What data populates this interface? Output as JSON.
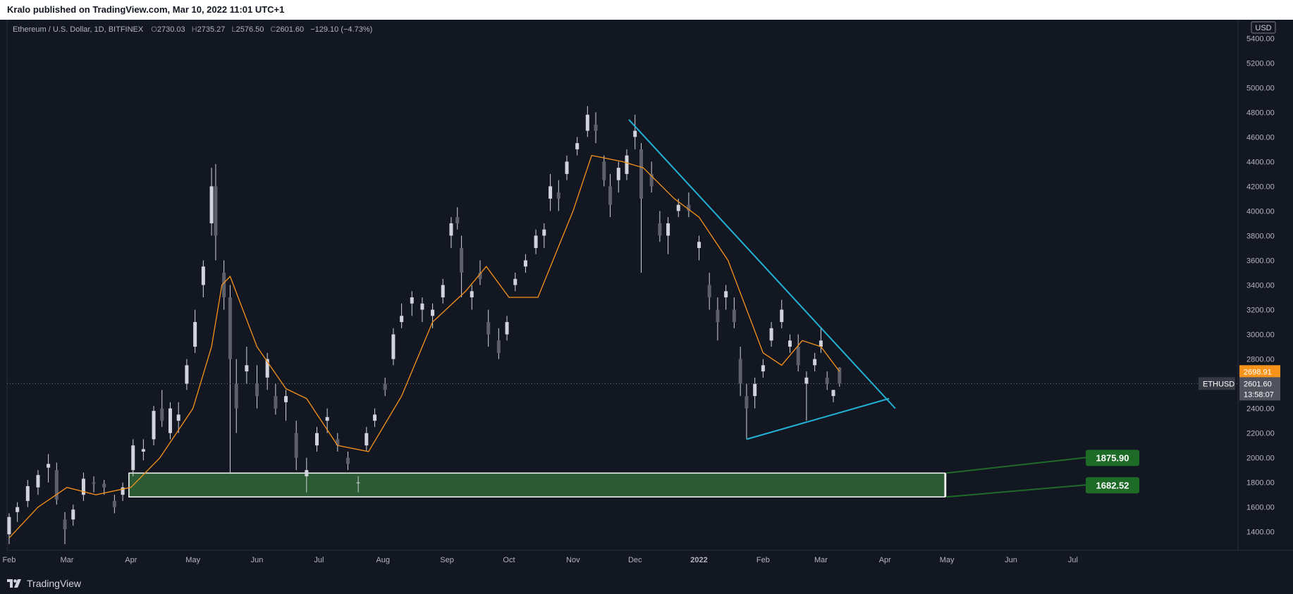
{
  "header": {
    "published": "Kralo published on TradingView.com, Mar 10, 2022 11:01 UTC+1"
  },
  "footer": {
    "brand": "TradingView"
  },
  "legend": {
    "symbol": "Ethereum / U.S. Dollar, 1D, BITFINEX",
    "ohlc": [
      {
        "k": "O",
        "v": "2730.03"
      },
      {
        "k": "H",
        "v": "2735.27"
      },
      {
        "k": "L",
        "v": "2576.50"
      },
      {
        "k": "C",
        "v": "2601.60"
      }
    ],
    "change": "−129.10 (−4.73%)"
  },
  "price_axis": {
    "currency": "USD",
    "ticks": [
      "5400.00",
      "5200.00",
      "5000.00",
      "4800.00",
      "4600.00",
      "4400.00",
      "4200.00",
      "4000.00",
      "3800.00",
      "3600.00",
      "3400.00",
      "3200.00",
      "3000.00",
      "2800.00",
      "2600.00",
      "2400.00",
      "2200.00",
      "2000.00",
      "1800.00",
      "1600.00",
      "1400.00"
    ],
    "ma_label": "2698.91",
    "symbol_tag": "ETHUSD",
    "last_price": "2601.60",
    "countdown": "13:58:07"
  },
  "time_axis": {
    "labels": [
      "Feb",
      "Mar",
      "Apr",
      "May",
      "Jun",
      "Jul",
      "Aug",
      "Sep",
      "Oct",
      "Nov",
      "Dec",
      "2022",
      "Feb",
      "Mar",
      "Apr",
      "May",
      "Jun",
      "Jul"
    ]
  },
  "zone": {
    "top_label": "1875.90",
    "bottom_label": "1682.52"
  },
  "colors": {
    "background": "#131722",
    "candle": "#d1d4dc",
    "ma": "#f7931a",
    "trendline": "#21b3d6",
    "zone_fill": "#2b5a34",
    "zone_label": "#1e6b28"
  },
  "chart_data": {
    "type": "candlestick",
    "title": "Ethereum / U.S. Dollar, 1D, BITFINEX",
    "ylim": [
      1250,
      5550
    ],
    "x_range": [
      "2021-02-01",
      "2022-07-31"
    ],
    "grid": false,
    "series": [
      {
        "values": [
          [
            "2021-02-01",
            1380,
            1550,
            1300,
            1520
          ],
          [
            "2021-02-05",
            1560,
            1640,
            1480,
            1600
          ],
          [
            "2021-02-10",
            1650,
            1820,
            1600,
            1770
          ],
          [
            "2021-02-15",
            1760,
            1900,
            1700,
            1860
          ],
          [
            "2021-02-20",
            1920,
            2030,
            1800,
            1950
          ],
          [
            "2021-02-24",
            1900,
            1960,
            1620,
            1660
          ],
          [
            "2021-02-28",
            1500,
            1560,
            1300,
            1420
          ],
          [
            "2021-03-04",
            1500,
            1620,
            1450,
            1580
          ],
          [
            "2021-03-09",
            1700,
            1880,
            1650,
            1830
          ],
          [
            "2021-03-14",
            1800,
            1850,
            1720,
            1790
          ],
          [
            "2021-03-19",
            1790,
            1820,
            1700,
            1760
          ],
          [
            "2021-03-24",
            1650,
            1700,
            1550,
            1600
          ],
          [
            "2021-03-28",
            1700,
            1800,
            1650,
            1760
          ],
          [
            "2021-04-02",
            1900,
            2150,
            1850,
            2100
          ],
          [
            "2021-04-07",
            2050,
            2150,
            1980,
            2070
          ],
          [
            "2021-04-12",
            2150,
            2420,
            2100,
            2380
          ],
          [
            "2021-04-16",
            2400,
            2550,
            2250,
            2300
          ],
          [
            "2021-04-20",
            2200,
            2450,
            2150,
            2400
          ],
          [
            "2021-04-24",
            2300,
            2450,
            2200,
            2350
          ],
          [
            "2021-04-28",
            2600,
            2800,
            2550,
            2750
          ],
          [
            "2021-05-02",
            2900,
            3200,
            2850,
            3100
          ],
          [
            "2021-05-06",
            3400,
            3600,
            3300,
            3550
          ],
          [
            "2021-05-10",
            3900,
            4350,
            3800,
            4200
          ],
          [
            "2021-05-12",
            4200,
            4380,
            3600,
            3800
          ],
          [
            "2021-05-16",
            3500,
            3600,
            3200,
            3300
          ],
          [
            "2021-05-19",
            3300,
            3400,
            1870,
            2800
          ],
          [
            "2021-05-22",
            2600,
            2800,
            2200,
            2400
          ],
          [
            "2021-05-27",
            2700,
            2900,
            2600,
            2750
          ],
          [
            "2021-06-01",
            2600,
            2750,
            2400,
            2500
          ],
          [
            "2021-06-06",
            2650,
            2850,
            2550,
            2800
          ],
          [
            "2021-06-10",
            2500,
            2600,
            2350,
            2400
          ],
          [
            "2021-06-15",
            2450,
            2550,
            2300,
            2500
          ],
          [
            "2021-06-20",
            2200,
            2300,
            1900,
            2000
          ],
          [
            "2021-06-25",
            1850,
            2000,
            1720,
            1900
          ],
          [
            "2021-06-30",
            2100,
            2250,
            2050,
            2200
          ],
          [
            "2021-07-05",
            2300,
            2400,
            2200,
            2330
          ],
          [
            "2021-07-10",
            2150,
            2200,
            2050,
            2100
          ],
          [
            "2021-07-15",
            2000,
            2050,
            1900,
            1950
          ],
          [
            "2021-07-20",
            1800,
            1850,
            1720,
            1800
          ],
          [
            "2021-07-24",
            2100,
            2250,
            2050,
            2200
          ],
          [
            "2021-07-28",
            2300,
            2400,
            2250,
            2350
          ],
          [
            "2021-08-02",
            2600,
            2650,
            2500,
            2550
          ],
          [
            "2021-08-06",
            2800,
            3050,
            2750,
            3000
          ],
          [
            "2021-08-10",
            3100,
            3250,
            3050,
            3150
          ],
          [
            "2021-08-15",
            3250,
            3350,
            3150,
            3300
          ],
          [
            "2021-08-20",
            3200,
            3300,
            3100,
            3250
          ],
          [
            "2021-08-25",
            3150,
            3250,
            3050,
            3200
          ],
          [
            "2021-08-30",
            3300,
            3450,
            3250,
            3400
          ],
          [
            "2021-09-03",
            3800,
            3950,
            3700,
            3900
          ],
          [
            "2021-09-06",
            3950,
            4030,
            3850,
            3900
          ],
          [
            "2021-09-08",
            3700,
            3800,
            3300,
            3500
          ],
          [
            "2021-09-13",
            3300,
            3400,
            3200,
            3350
          ],
          [
            "2021-09-17",
            3500,
            3600,
            3400,
            3450
          ],
          [
            "2021-09-21",
            3100,
            3200,
            2900,
            3000
          ],
          [
            "2021-09-26",
            2950,
            3050,
            2800,
            2850
          ],
          [
            "2021-09-30",
            3000,
            3150,
            2950,
            3100
          ],
          [
            "2021-10-04",
            3400,
            3500,
            3350,
            3450
          ],
          [
            "2021-10-09",
            3550,
            3650,
            3500,
            3600
          ],
          [
            "2021-10-14",
            3700,
            3850,
            3650,
            3800
          ],
          [
            "2021-10-18",
            3800,
            3900,
            3700,
            3850
          ],
          [
            "2021-10-21",
            4100,
            4300,
            4000,
            4200
          ],
          [
            "2021-10-25",
            4150,
            4250,
            4000,
            4100
          ],
          [
            "2021-10-29",
            4300,
            4450,
            4250,
            4400
          ],
          [
            "2021-11-03",
            4500,
            4600,
            4450,
            4550
          ],
          [
            "2021-11-08",
            4650,
            4850,
            4600,
            4780
          ],
          [
            "2021-11-12",
            4700,
            4800,
            4550,
            4650
          ],
          [
            "2021-11-16",
            4400,
            4450,
            4200,
            4250
          ],
          [
            "2021-11-19",
            4200,
            4300,
            3950,
            4050
          ],
          [
            "2021-11-23",
            4250,
            4400,
            4150,
            4350
          ],
          [
            "2021-11-27",
            4300,
            4500,
            4250,
            4450
          ],
          [
            "2021-12-01",
            4600,
            4780,
            4500,
            4650
          ],
          [
            "2021-12-04",
            4500,
            4550,
            3500,
            4100
          ],
          [
            "2021-12-09",
            4300,
            4400,
            4150,
            4200
          ],
          [
            "2021-12-13",
            3900,
            4000,
            3750,
            3800
          ],
          [
            "2021-12-17",
            3800,
            3950,
            3650,
            3900
          ],
          [
            "2021-12-22",
            4000,
            4100,
            3950,
            4050
          ],
          [
            "2021-12-27",
            4050,
            4150,
            3950,
            4000
          ],
          [
            "2022-01-01",
            3700,
            3800,
            3600,
            3750
          ],
          [
            "2022-01-06",
            3400,
            3500,
            3200,
            3300
          ],
          [
            "2022-01-10",
            3200,
            3300,
            2950,
            3100
          ],
          [
            "2022-01-14",
            3300,
            3400,
            3200,
            3350
          ],
          [
            "2022-01-18",
            3200,
            3300,
            3050,
            3100
          ],
          [
            "2022-01-21",
            2800,
            2900,
            2500,
            2600
          ],
          [
            "2022-01-24",
            2500,
            2600,
            2150,
            2400
          ],
          [
            "2022-01-28",
            2500,
            2650,
            2400,
            2600
          ],
          [
            "2022-02-01",
            2700,
            2800,
            2650,
            2750
          ],
          [
            "2022-02-05",
            2950,
            3100,
            2900,
            3050
          ],
          [
            "2022-02-10",
            3100,
            3280,
            3050,
            3200
          ],
          [
            "2022-02-14",
            2900,
            3000,
            2850,
            2950
          ],
          [
            "2022-02-18",
            2900,
            3000,
            2700,
            2750
          ],
          [
            "2022-02-22",
            2600,
            2700,
            2300,
            2650
          ],
          [
            "2022-02-26",
            2750,
            2850,
            2700,
            2800
          ],
          [
            "2022-03-01",
            2900,
            3050,
            2850,
            2950
          ],
          [
            "2022-03-04",
            2650,
            2700,
            2550,
            2600
          ],
          [
            "2022-03-07",
            2500,
            2550,
            2450,
            2550
          ],
          [
            "2022-03-10",
            2730,
            2735,
            2576,
            2601
          ]
        ]
      },
      {
        "type": "line",
        "values": [
          [
            "2021-02-01",
            1350
          ],
          [
            "2021-02-15",
            1600
          ],
          [
            "2021-03-01",
            1760
          ],
          [
            "2021-03-15",
            1700
          ],
          [
            "2021-04-01",
            1760
          ],
          [
            "2021-04-15",
            2000
          ],
          [
            "2021-05-01",
            2400
          ],
          [
            "2021-05-10",
            2900
          ],
          [
            "2021-05-15",
            3400
          ],
          [
            "2021-05-19",
            3470
          ],
          [
            "2021-06-01",
            2900
          ],
          [
            "2021-06-15",
            2560
          ],
          [
            "2021-06-25",
            2480
          ],
          [
            "2021-07-10",
            2100
          ],
          [
            "2021-07-25",
            2050
          ],
          [
            "2021-08-10",
            2500
          ],
          [
            "2021-08-25",
            3100
          ],
          [
            "2021-09-10",
            3350
          ],
          [
            "2021-09-20",
            3550
          ],
          [
            "2021-10-01",
            3300
          ],
          [
            "2021-10-15",
            3300
          ],
          [
            "2021-11-01",
            4000
          ],
          [
            "2021-11-10",
            4450
          ],
          [
            "2021-11-25",
            4400
          ],
          [
            "2021-12-05",
            4350
          ],
          [
            "2021-12-20",
            4100
          ],
          [
            "2022-01-01",
            3950
          ],
          [
            "2022-01-15",
            3600
          ],
          [
            "2022-02-01",
            2850
          ],
          [
            "2022-02-10",
            2750
          ],
          [
            "2022-02-20",
            2950
          ],
          [
            "2022-03-01",
            2900
          ],
          [
            "2022-03-10",
            2698.91
          ]
        ]
      },
      {
        "type": "line",
        "values": [
          [
            "2021-11-28",
            4740
          ],
          [
            "2022-04-06",
            2400
          ]
        ]
      },
      {
        "type": "line",
        "values": [
          [
            "2022-01-24",
            2150
          ],
          [
            "2022-04-03",
            2480
          ]
        ]
      },
      {
        "type": "area",
        "x": [
          "2021-03-31",
          "2022-04-30"
        ],
        "y": [
          1682.52,
          1875.9
        ]
      }
    ]
  }
}
